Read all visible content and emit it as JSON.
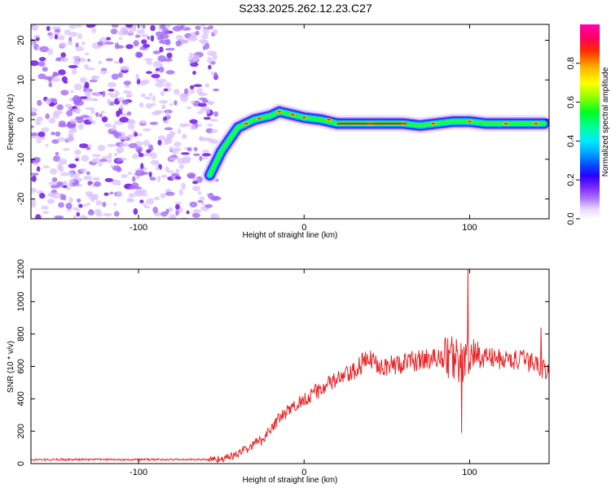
{
  "title": "S233.2025.262.12.23.C27",
  "chart_data": [
    {
      "type": "heatmap",
      "title": "S233.2025.262.12.23.C27",
      "xlabel": "Height of straight line (km)",
      "ylabel": "Frequency (Hz)",
      "xlim": [
        -165,
        148
      ],
      "ylim": [
        -25,
        24
      ],
      "xticks": [
        -100,
        0,
        100
      ],
      "yticks": [
        20,
        10,
        0,
        -10,
        -20
      ],
      "signal_track": {
        "description": "high-amplitude ridge",
        "points": [
          [
            -57,
            -14
          ],
          [
            -50,
            -8
          ],
          [
            -45,
            -5
          ],
          [
            -40,
            -2
          ],
          [
            -35,
            -1
          ],
          [
            -30,
            0
          ],
          [
            -20,
            1
          ],
          [
            -15,
            2
          ],
          [
            -10,
            1.5
          ],
          [
            0,
            0.5
          ],
          [
            10,
            0
          ],
          [
            20,
            -1
          ],
          [
            40,
            -1
          ],
          [
            60,
            -1
          ],
          [
            70,
            -1.5
          ],
          [
            80,
            -1
          ],
          [
            90,
            -0.5
          ],
          [
            100,
            -0.5
          ],
          [
            110,
            -1
          ],
          [
            120,
            -1
          ],
          [
            130,
            -1
          ],
          [
            145,
            -1
          ]
        ],
        "noise_region_x": [
          -165,
          -55
        ]
      },
      "colorbar": {
        "label": "Normalized spectral amplitude",
        "range": [
          0,
          1
        ],
        "ticks": [
          "0.0",
          "0.2",
          "0.4",
          "0.6",
          "0.8"
        ],
        "colors": [
          "#ffffff",
          "#c9a6ff",
          "#7b2bff",
          "#0000ff",
          "#00a0ff",
          "#00ffff",
          "#00ff80",
          "#00ff00",
          "#a0ff00",
          "#ffff00",
          "#ffa000",
          "#ff0000",
          "#ff0080",
          "#ff00c0"
        ]
      }
    },
    {
      "type": "line",
      "xlabel": "Height of straight line (km)",
      "ylabel": "SNR (10 * v/v)",
      "xlim": [
        -165,
        148
      ],
      "ylim": [
        0,
        1200
      ],
      "xticks": [
        -100,
        0,
        100
      ],
      "yticks": [
        0,
        200,
        400,
        600,
        800,
        1000,
        1200
      ],
      "series": [
        {
          "name": "SNR",
          "color": "#e8282a",
          "trend": {
            "x": [
              -165,
              -60,
              -50,
              -45,
              -40,
              -35,
              -30,
              -25,
              -20,
              -15,
              -10,
              -5,
              0,
              10,
              20,
              30,
              35,
              40,
              50,
              60,
              70,
              80,
              90,
              95,
              100,
              110,
              120,
              130,
              140,
              148
            ],
            "y": [
              25,
              25,
              30,
              40,
              60,
              90,
              120,
              150,
              220,
              280,
              320,
              360,
              400,
              460,
              520,
              560,
              620,
              640,
              600,
              620,
              640,
              650,
              660,
              620,
              640,
              660,
              640,
              640,
              620,
              560
            ]
          },
          "spikes": [
            {
              "x": 99,
              "y": 1200
            },
            {
              "x": 95,
              "y": 190
            },
            {
              "x": 143,
              "y": 840
            }
          ]
        }
      ]
    }
  ]
}
